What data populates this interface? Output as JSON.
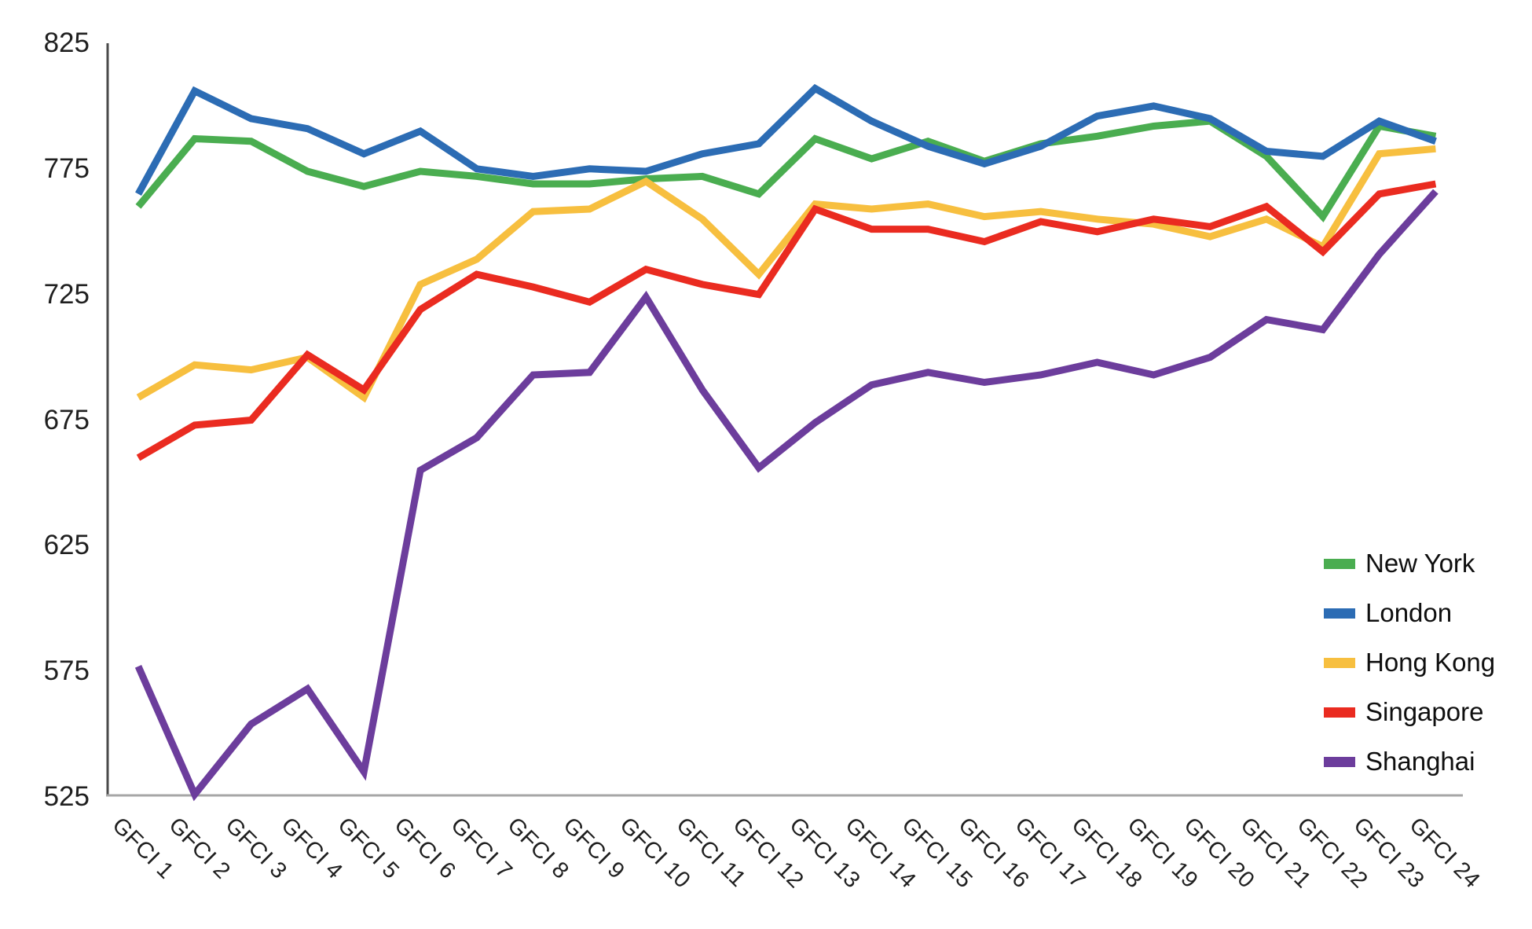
{
  "chart_data": {
    "type": "line",
    "title": "",
    "xlabel": "",
    "ylabel": "",
    "categories": [
      "GFCI 1",
      "GFCI 2",
      "GFCI 3",
      "GFCI 4",
      "GFCI 5",
      "GFCI 6",
      "GFCI 7",
      "GFCI 8",
      "GFCI 9",
      "GFCI 10",
      "GFCI 11",
      "GFCI 12",
      "GFCI 13",
      "GFCI 14",
      "GFCI 15",
      "GFCI 16",
      "GFCI 17",
      "GFCI 18",
      "GFCI 19",
      "GFCI 20",
      "GFCI 21",
      "GFCI 22",
      "GFCI 23",
      "GFCI 24"
    ],
    "y_ticks": [
      825,
      775,
      725,
      675,
      625,
      575,
      525
    ],
    "ylim": [
      525,
      825
    ],
    "grid": false,
    "legend_position": "right-middle",
    "series": [
      {
        "name": "New York",
        "color": "#4aad50",
        "values": [
          760,
          787,
          786,
          774,
          768,
          774,
          772,
          769,
          769,
          771,
          772,
          765,
          787,
          779,
          786,
          778,
          785,
          788,
          792,
          794,
          780,
          756,
          792,
          788
        ]
      },
      {
        "name": "London",
        "color": "#2c6cb4",
        "values": [
          765,
          806,
          795,
          791,
          781,
          790,
          775,
          772,
          775,
          774,
          781,
          785,
          807,
          794,
          784,
          777,
          784,
          796,
          800,
          795,
          782,
          780,
          794,
          786
        ]
      },
      {
        "name": "Hong Kong",
        "color": "#f7bf3f",
        "values": [
          684,
          697,
          695,
          700,
          684,
          729,
          739,
          758,
          759,
          770,
          755,
          733,
          761,
          759,
          761,
          756,
          758,
          755,
          753,
          748,
          755,
          744,
          781,
          783
        ]
      },
      {
        "name": "Singapore",
        "color": "#ea2b20",
        "values": [
          660,
          673,
          675,
          701,
          687,
          719,
          733,
          728,
          722,
          735,
          729,
          725,
          759,
          751,
          751,
          746,
          754,
          750,
          755,
          752,
          760,
          742,
          765,
          769
        ]
      },
      {
        "name": "Shanghai",
        "color": "#6c3d9c",
        "values": [
          577,
          526,
          554,
          568,
          535,
          655,
          668,
          693,
          694,
          724,
          687,
          656,
          674,
          689,
          694,
          690,
          693,
          698,
          693,
          700,
          715,
          711,
          741,
          766
        ]
      }
    ],
    "axis_colors": {
      "y_axis_line": "#4a4a4a",
      "x_axis_line": "#a6a6a6",
      "tick_label": "#1f1f1f"
    }
  }
}
